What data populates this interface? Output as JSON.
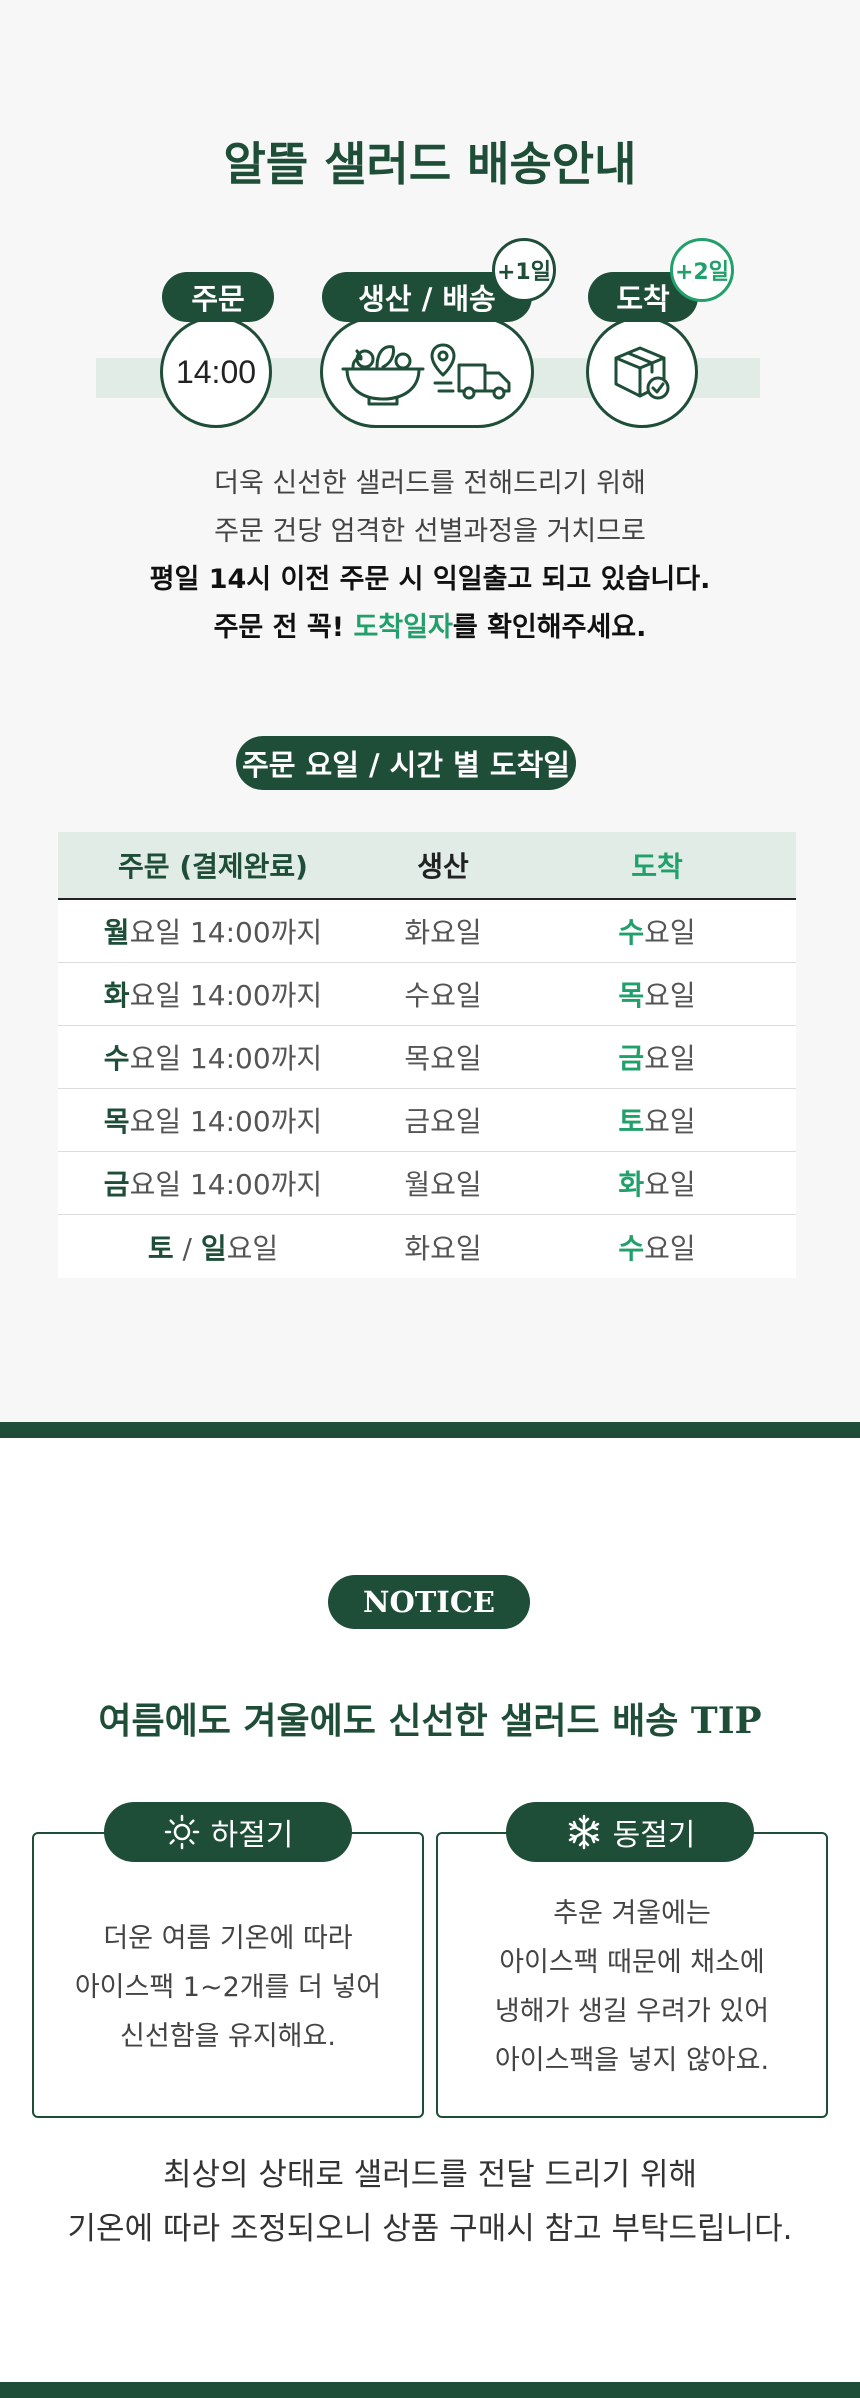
{
  "page": {
    "title": "알뜰 샐러드 배송안내"
  },
  "timeline": {
    "order_label": "주문",
    "order_time": "14:00",
    "production_label": "생산 / 배송",
    "production_badge": "+1일",
    "arrival_label": "도착",
    "arrival_badge": "+2일"
  },
  "description": {
    "line1": "더욱 신선한 샐러드를 전해드리기 위해",
    "line2": "주문 건당 엄격한 선별과정을 거치므로",
    "line3": "평일 14시 이전 주문 시 익일출고 되고 있습니다.",
    "line4_pre": "주문 전 꼭! ",
    "line4_highlight": "도착일자",
    "line4_post": "를 확인해주세요."
  },
  "schedule": {
    "title": "주문 요일 / 시간 별 도착일",
    "headers": [
      "주문 (결제완료)",
      "생산",
      "도착"
    ],
    "rows": [
      {
        "order_day": "월",
        "order_suffix": "요일 14:00까지",
        "production": "화요일",
        "arrival_day": "수",
        "arrival_suffix": "요일"
      },
      {
        "order_day": "화",
        "order_suffix": "요일 14:00까지",
        "production": "수요일",
        "arrival_day": "목",
        "arrival_suffix": "요일"
      },
      {
        "order_day": "수",
        "order_suffix": "요일 14:00까지",
        "production": "목요일",
        "arrival_day": "금",
        "arrival_suffix": "요일"
      },
      {
        "order_day": "목",
        "order_suffix": "요일 14:00까지",
        "production": "금요일",
        "arrival_day": "토",
        "arrival_suffix": "요일"
      },
      {
        "order_day": "금",
        "order_suffix": "요일 14:00까지",
        "production": "월요일",
        "arrival_day": "화",
        "arrival_suffix": "요일"
      }
    ],
    "last_row": {
      "day1": "토",
      "sep": " / ",
      "day2": "일",
      "suffix": "요일",
      "production": "화요일",
      "arrival_day": "수",
      "arrival_suffix": "요일"
    }
  },
  "notice": {
    "label": "NOTICE",
    "title": "여름에도 겨울에도 신선한 샐러드 배송 TIP",
    "summer": {
      "label": "하절기",
      "icon": "sun-icon",
      "line1": "더운 여름 기온에 따라",
      "line2": "아이스팩 1~2개를 더 넣어",
      "line3": "신선함을 유지해요."
    },
    "winter": {
      "label": "동절기",
      "icon": "snowflake-icon",
      "line1": "추운 겨울에는",
      "line2": "아이스팩 때문에 채소에",
      "line3": "냉해가 생길 우려가 있어",
      "line4": "아이스팩을 넣지 않아요."
    },
    "closing_line1": "최상의 상태로 샐러드를 전달 드리기 위해",
    "closing_line2": "기온에 따라 조정되오니 상품 구매시 참고 부탁드립니다."
  },
  "colors": {
    "primary": "#1e4d38",
    "accent": "#22a06b",
    "band": "#e1ece6",
    "background": "#f7f7f7"
  }
}
